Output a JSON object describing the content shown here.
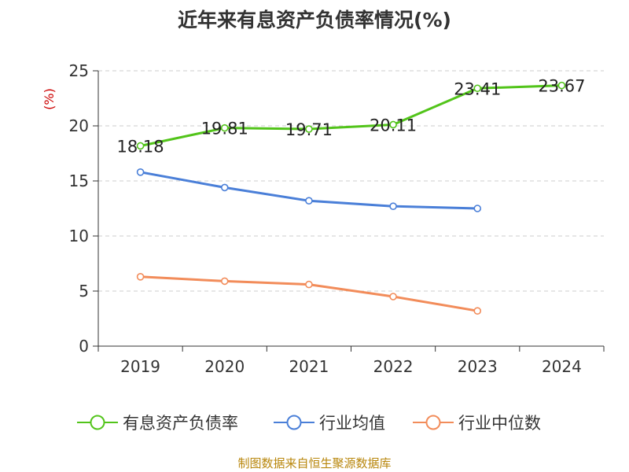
{
  "chart_data": {
    "type": "line",
    "title": "近年来有息资产负债率情况(%)",
    "ylabel": "(%)",
    "ylim": [
      0,
      25
    ],
    "yticks": [
      0,
      5,
      10,
      15,
      20,
      25
    ],
    "categories": [
      "2019",
      "2020",
      "2021",
      "2022",
      "2023",
      "2024"
    ],
    "grid": true,
    "legend_position": "bottom",
    "series": [
      {
        "name": "有息资产负债率",
        "color": "#52c41a",
        "values": [
          18.18,
          19.81,
          19.71,
          20.11,
          23.41,
          23.67
        ],
        "data_labels": [
          "18.18",
          "19.81",
          "19.71",
          "20.11",
          "23.41",
          "23.67"
        ]
      },
      {
        "name": "行业均值",
        "color": "#4a7fd8",
        "values": [
          15.8,
          14.4,
          13.2,
          12.7,
          12.5,
          null
        ]
      },
      {
        "name": "行业中位数",
        "color": "#f28c5a",
        "values": [
          6.3,
          5.9,
          5.6,
          4.5,
          3.2,
          null
        ]
      }
    ]
  },
  "source": "制图数据来自恒生聚源数据库"
}
